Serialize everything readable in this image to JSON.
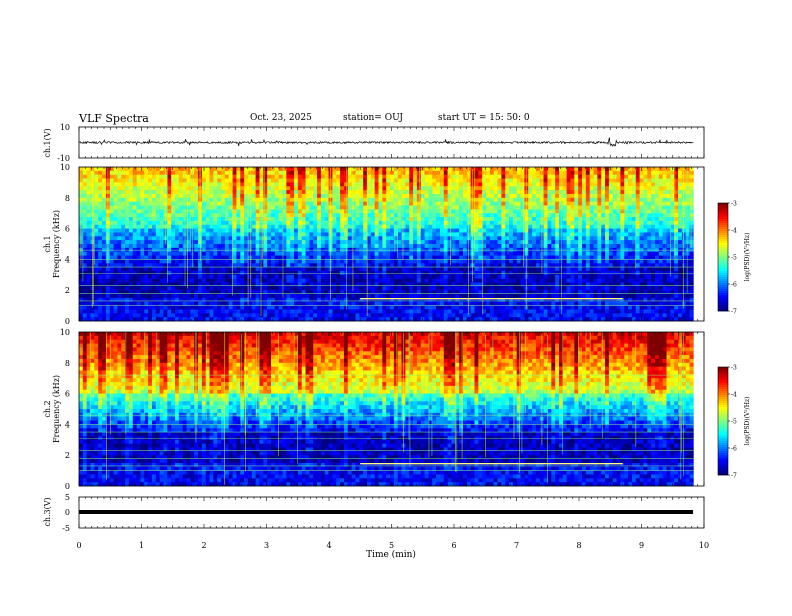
{
  "header": {
    "title": "VLF Spectra",
    "date": "Oct. 23, 2025",
    "station": "station= OUJ",
    "start_ut": "start  UT  =   15: 50: 0"
  },
  "colors": {
    "waveform": "#000000",
    "colormap": [
      "#00007f",
      "#0000ff",
      "#007fff",
      "#00ffff",
      "#7fff7f",
      "#ffff00",
      "#ff7f00",
      "#ff0000",
      "#7f0000"
    ]
  },
  "chart_data": [
    {
      "type": "line",
      "panel": "ch1-waveform",
      "ylabel": "ch.1(V)",
      "ylim": [
        -10,
        10
      ],
      "yticks": [
        "10",
        "-10"
      ],
      "xlim": [
        0,
        10
      ],
      "description_values": {
        "baseline_v": 0.0,
        "noise_amplitude_v": 1.2
      }
    },
    {
      "type": "heatmap",
      "panel": "ch1-spectrogram",
      "ylabel_channel": "ch.1",
      "ylabel": "Frequency  (kHz)",
      "ylim": [
        0,
        10
      ],
      "yticks": [
        "0",
        "2",
        "4",
        "6",
        "8",
        "10"
      ],
      "xlim": [
        0,
        9.83
      ],
      "colorbar": {
        "label": "log(PSD)(V²/Hz)",
        "range": [
          -7,
          -3
        ],
        "ticks": [
          "-3",
          "-4",
          "-5",
          "-6",
          "-7"
        ]
      }
    },
    {
      "type": "heatmap",
      "panel": "ch2-spectrogram",
      "ylabel_channel": "ch.2",
      "ylabel": "Frequency  (kHz)",
      "ylim": [
        0,
        10
      ],
      "yticks": [
        "0",
        "2",
        "4",
        "6",
        "8",
        "10"
      ],
      "xlim": [
        0,
        9.83
      ],
      "colorbar": {
        "label": "log(PSD)(V²/Hz)",
        "range": [
          -7,
          -3
        ],
        "ticks": [
          "-3",
          "-4",
          "-5",
          "-6",
          "-7"
        ]
      }
    },
    {
      "type": "line",
      "panel": "ch3-waveform",
      "ylabel": "ch.3(V)",
      "ylim": [
        -5,
        5
      ],
      "yticks": [
        "5",
        "0",
        "-5"
      ],
      "xlim": [
        0,
        10
      ],
      "description_values": {
        "baseline_v": -1.0
      }
    }
  ],
  "xaxis": {
    "label": "Time  (min)",
    "range": [
      0,
      10
    ],
    "ticks": [
      "0",
      "1",
      "2",
      "3",
      "4",
      "5",
      "6",
      "7",
      "8",
      "9",
      "10"
    ]
  }
}
